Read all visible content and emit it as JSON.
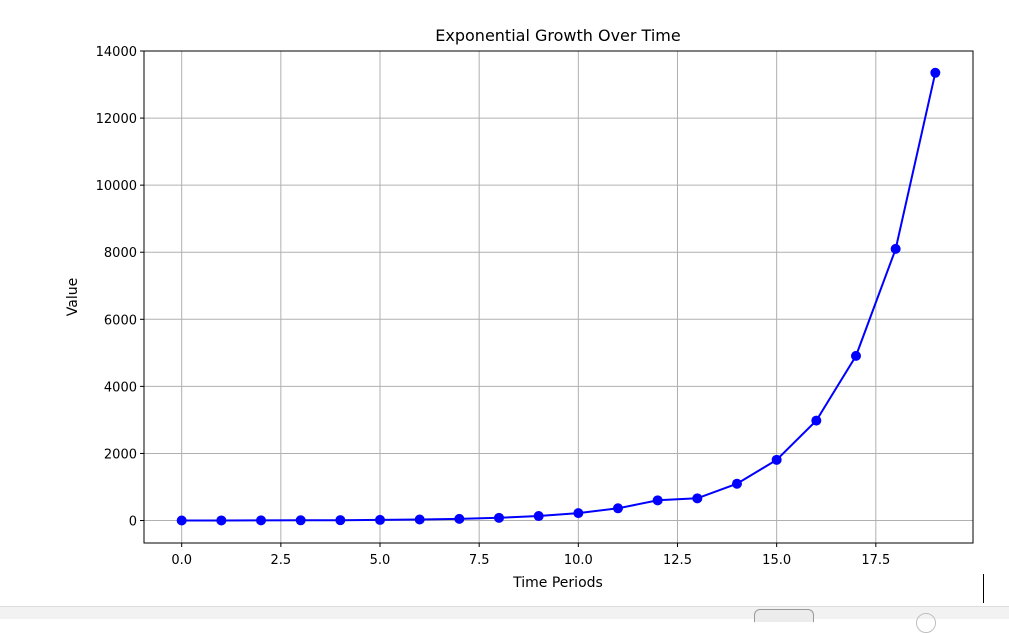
{
  "chart_data": {
    "type": "line",
    "title": "Exponential Growth Over Time",
    "xlabel": "Time Periods",
    "ylabel": "Value",
    "x": [
      0,
      1,
      2,
      3,
      4,
      5,
      6,
      7,
      8,
      9,
      10,
      11,
      12,
      13,
      14,
      15,
      16,
      17,
      18,
      19
    ],
    "series": [
      {
        "values": [
          1,
          2,
          4,
          7,
          11,
          18,
          30,
          49,
          81,
          134,
          221,
          365,
          602,
          662,
          1098,
          1810,
          2980,
          4910,
          8100,
          13350
        ]
      }
    ],
    "xlim": [
      -0.95,
      19.95
    ],
    "ylim": [
      -670,
      14000
    ],
    "xticks": [
      0.0,
      2.5,
      5.0,
      7.5,
      10.0,
      12.5,
      15.0,
      17.5
    ],
    "xtick_labels": [
      "0.0",
      "2.5",
      "5.0",
      "7.5",
      "10.0",
      "12.5",
      "15.0",
      "17.5"
    ],
    "yticks": [
      0,
      2000,
      4000,
      6000,
      8000,
      10000,
      12000,
      14000
    ],
    "ytick_labels": [
      "0",
      "2000",
      "4000",
      "6000",
      "8000",
      "10000",
      "12000",
      "14000"
    ],
    "grid": true,
    "marker": "circle",
    "color": "#0000ff"
  }
}
